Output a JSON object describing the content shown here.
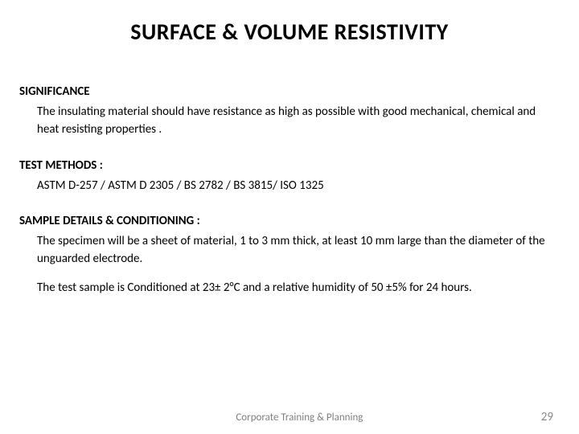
{
  "title": "SURFACE & VOLUME RESISTIVITY",
  "sections": {
    "significance": {
      "heading": "SIGNIFICANCE",
      "body": "The insulating material should have resistance as high as possible with good mechanical, chemical and heat resisting properties ."
    },
    "test_methods": {
      "heading": "TEST METHODS :",
      "body": "ASTM D-257 / ASTM D 2305 / BS 2782 / BS 3815/ ISO 1325"
    },
    "sample_details": {
      "heading": "SAMPLE DETAILS & CONDITIONING :",
      "body1": "The specimen will be a sheet of material, 1 to 3 mm thick, at least 10 mm large than the diameter of the unguarded electrode.",
      "body2": "The test sample is Conditioned  at 23± 2°C and a relative humidity of 50 ±5% for 24 hours."
    }
  },
  "footer": {
    "center": "Corporate Training & Planning",
    "page": "29"
  },
  "styling": {
    "title_fontsize": 28,
    "heading_fontsize": 15,
    "body_fontsize": 15,
    "footer_fontsize_center": 13,
    "footer_fontsize_page": 15,
    "text_color": "#000000",
    "footer_center_color": "#7f7f7f",
    "footer_page_color": "#898989",
    "background_color": "#ffffff"
  }
}
